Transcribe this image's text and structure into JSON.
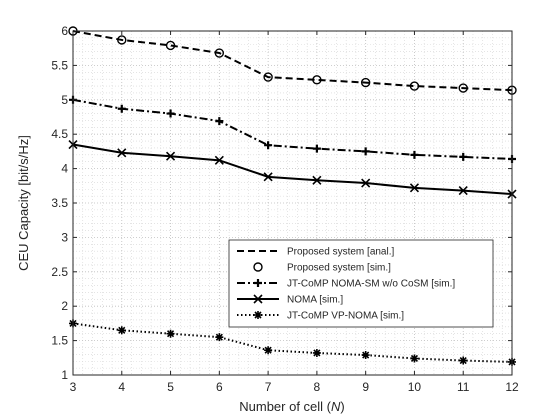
{
  "chart_data": {
    "type": "line",
    "title": "",
    "xlabel": "Number of cell (",
    "xlabel_var": "N",
    "xlabel_close": ")",
    "ylabel": "CEU Capacity [bit/s/Hz]",
    "x": [
      3,
      4,
      5,
      6,
      7,
      8,
      9,
      10,
      11,
      12
    ],
    "xlim": [
      3,
      12
    ],
    "ylim": [
      1,
      6
    ],
    "xticks": [
      "3",
      "4",
      "5",
      "6",
      "7",
      "8",
      "9",
      "10",
      "11",
      "12"
    ],
    "yticks": [
      "1",
      "1.5",
      "2",
      "2.5",
      "3",
      "3.5",
      "4",
      "4.5",
      "5",
      "5.5",
      "6"
    ],
    "grid": true,
    "minor_grid": true,
    "legend_position": "lower-right",
    "series": [
      {
        "name": "Proposed system [anal.]",
        "line": "dashed",
        "marker": "none",
        "values": [
          6.0,
          5.87,
          5.79,
          5.68,
          5.33,
          5.29,
          5.25,
          5.2,
          5.17,
          5.14
        ]
      },
      {
        "name": "Proposed system [sim.]",
        "line": "none",
        "marker": "circle",
        "values": [
          6.0,
          5.87,
          5.79,
          5.68,
          5.33,
          5.29,
          5.25,
          5.2,
          5.17,
          5.14
        ]
      },
      {
        "name": "JT-CoMP NOMA-SM w/o CoSM [sim.]",
        "line": "dashdot",
        "marker": "plus",
        "values": [
          5.0,
          4.87,
          4.8,
          4.69,
          4.34,
          4.29,
          4.25,
          4.2,
          4.17,
          4.14
        ]
      },
      {
        "name": "NOMA [sim.]",
        "line": "solid",
        "marker": "x",
        "values": [
          4.35,
          4.23,
          4.18,
          4.12,
          3.88,
          3.83,
          3.79,
          3.72,
          3.68,
          3.63
        ]
      },
      {
        "name": "JT-CoMP VP-NOMA [sim.]",
        "line": "dotted",
        "marker": "asterisk",
        "values": [
          1.75,
          1.65,
          1.6,
          1.55,
          1.36,
          1.32,
          1.29,
          1.24,
          1.21,
          1.19
        ]
      }
    ]
  }
}
